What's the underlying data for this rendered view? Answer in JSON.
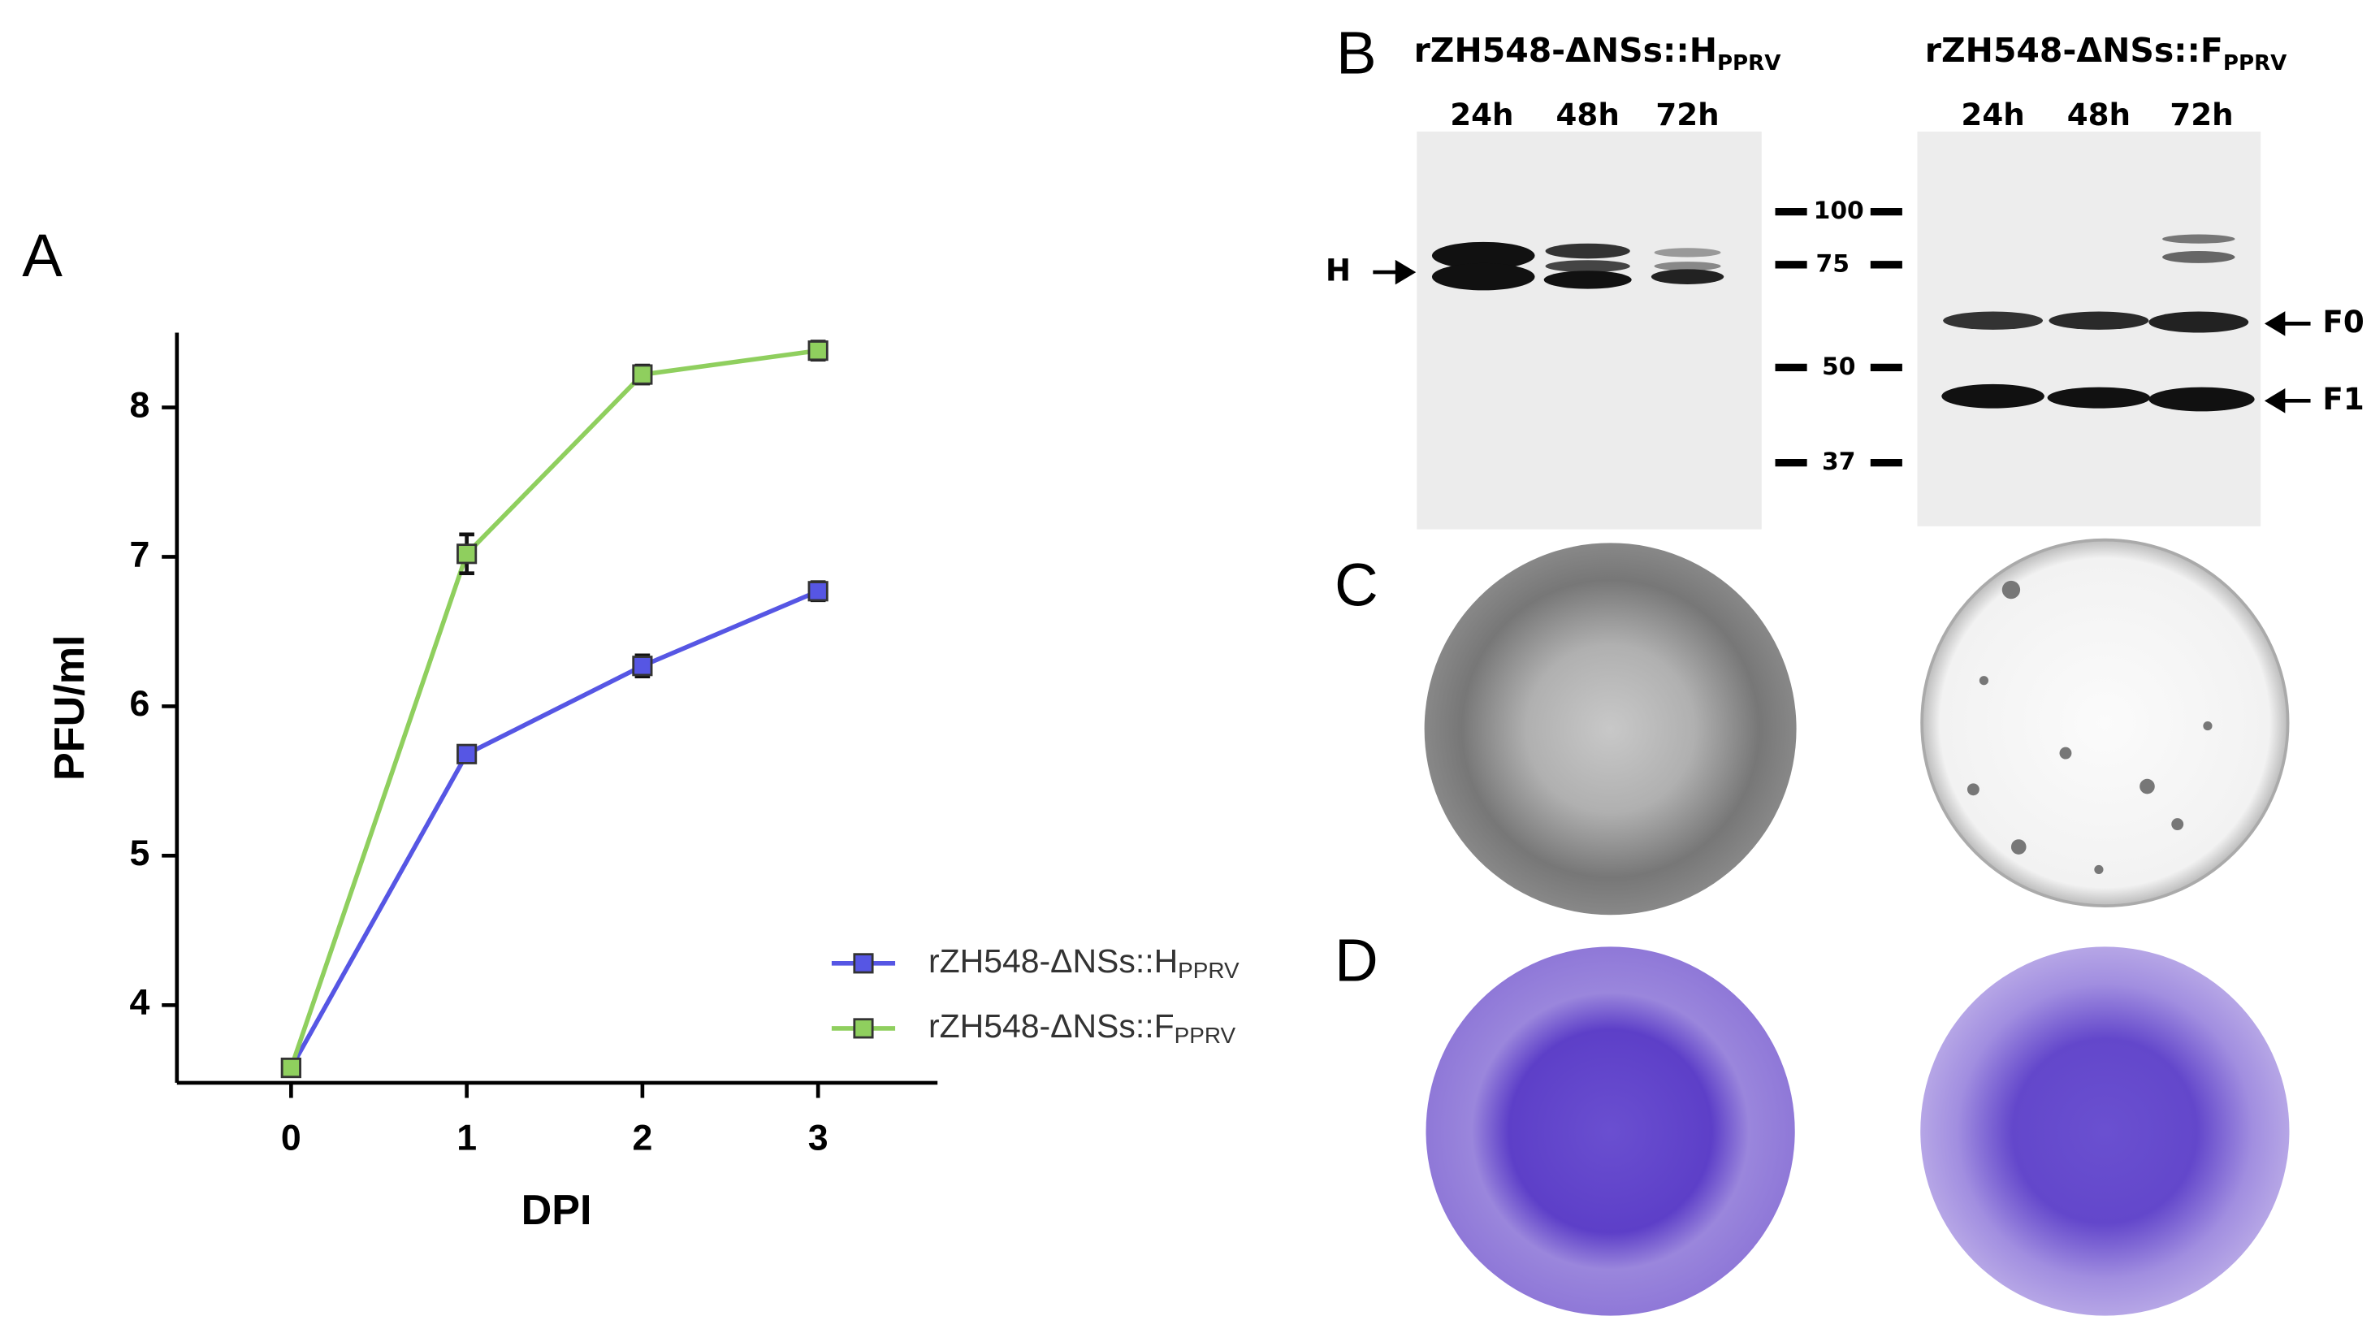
{
  "chart_data": {
    "type": "line",
    "x": [
      0,
      1,
      2,
      3
    ],
    "xlim": [
      -0.65,
      3.68
    ],
    "ylim": [
      3.48,
      8.5
    ],
    "xticks": [
      0,
      1,
      2,
      3
    ],
    "yticks": [
      4,
      5,
      6,
      7,
      8
    ],
    "xlabel": "DPI",
    "ylabel": "PFU/ml",
    "series": [
      {
        "name": "rZH548-ΔNSs::H",
        "name_sub": "PPRV",
        "color": "#5656e4",
        "values": [
          3.58,
          5.68,
          6.27,
          6.77
        ],
        "errors": [
          0.02,
          0.05,
          0.07,
          0.06
        ]
      },
      {
        "name": "rZH548-ΔNSs::F",
        "name_sub": "PPRV",
        "color": "#8fcf5e",
        "values": [
          3.58,
          7.02,
          8.22,
          8.38
        ],
        "errors": [
          0.02,
          0.13,
          0.06,
          0.06
        ]
      }
    ]
  },
  "panel_labels": [
    "A",
    "B",
    "C",
    "D"
  ],
  "panel_b": {
    "title_left": "rZH548-ΔNSs::H",
    "title_left_sub": "PPRV",
    "title_right": "rZH548-ΔNSs::F",
    "title_right_sub": "PPRV",
    "lanes_left": [
      "24h",
      "48h",
      "72h"
    ],
    "lanes_right": [
      "24h",
      "48h",
      "72h"
    ],
    "markers": [
      100,
      75,
      50,
      37
    ],
    "label_h": "H",
    "label_f0": "F0",
    "label_f1": "F1"
  }
}
